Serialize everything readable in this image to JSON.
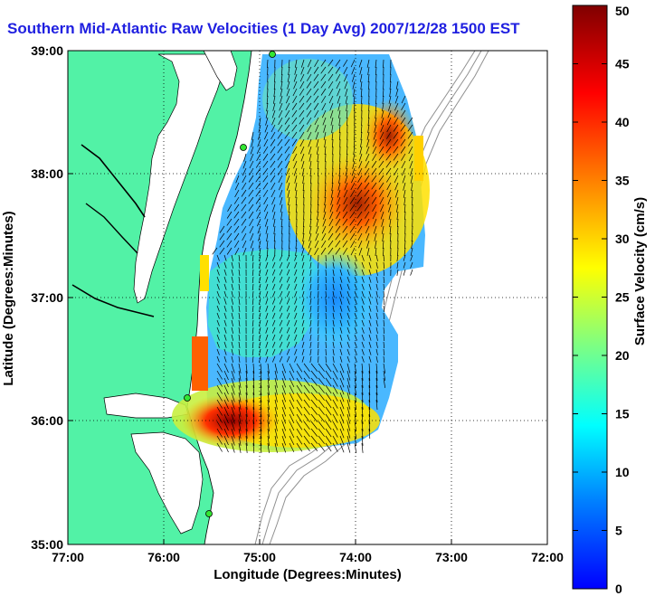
{
  "title": "Southern Mid-Atlantic Raw Velocities (1 Day Avg) 2007/12/28 1500 EST",
  "xaxis": {
    "label": "Longitude (Degrees:Minutes)",
    "ticks": [
      "77:00",
      "76:00",
      "75:00",
      "74:00",
      "73:00",
      "72:00"
    ]
  },
  "yaxis": {
    "label": "Latitude (Degrees:Minutes)",
    "ticks": [
      "39:00",
      "38:00",
      "37:00",
      "36:00",
      "35:00"
    ]
  },
  "colorbar": {
    "label": "Surface Velocity (cm/s)",
    "ticks": [
      "50",
      "45",
      "40",
      "35",
      "30",
      "25",
      "20",
      "15",
      "10",
      "5",
      "0"
    ],
    "min": 0,
    "max": 50,
    "colormap": [
      "#0000ff",
      "#0080ff",
      "#00ffff",
      "#80ff80",
      "#ffff00",
      "#ff8000",
      "#ff0000",
      "#800000"
    ]
  },
  "colors": {
    "land": "#52f2a6",
    "title": "#1f1fe0",
    "site_marker": "#33e633"
  },
  "map": {
    "lon_range": [
      -77,
      -72
    ],
    "lat_range": [
      35,
      39
    ],
    "grid": "dotted"
  }
}
